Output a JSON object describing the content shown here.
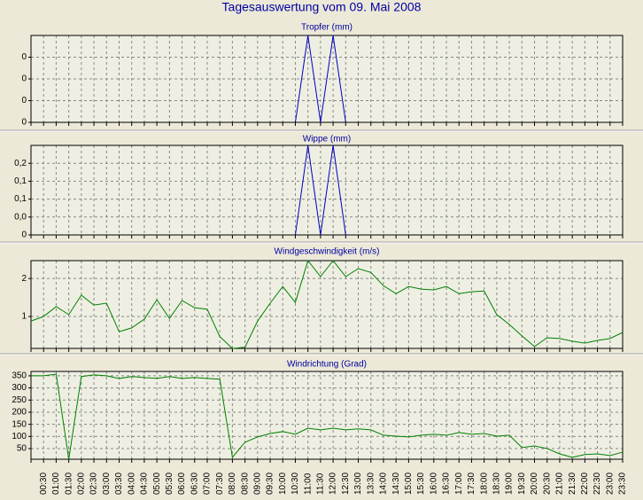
{
  "title": "Tagesauswertung vom 09. Mai 2008",
  "chart_data": [
    {
      "type": "line",
      "title": "Tropfer (mm)",
      "ylim": [
        0,
        0.4
      ],
      "yticks": [
        0,
        {
          "value": 0.1,
          "label": "0"
        },
        {
          "value": 0.2,
          "label": "0"
        },
        {
          "value": 0.3,
          "label": "0"
        }
      ],
      "series": [
        {
          "color": "#0000c0",
          "values": [
            null,
            null,
            null,
            null,
            null,
            null,
            null,
            null,
            null,
            null,
            null,
            null,
            null,
            null,
            null,
            null,
            null,
            null,
            null,
            null,
            null,
            0,
            0.4,
            0,
            0.4,
            0,
            null,
            null,
            null,
            null,
            null,
            null,
            null,
            null,
            null,
            null,
            null,
            null,
            null,
            null,
            null,
            null,
            null,
            null,
            null,
            null,
            null,
            null
          ]
        }
      ]
    },
    {
      "type": "line",
      "title": "Wippe (mm)",
      "ylim": [
        0,
        0.25
      ],
      "yticks": [
        0,
        {
          "value": 0.05,
          "label": "0,0"
        },
        {
          "value": 0.1,
          "label": "0,1"
        },
        {
          "value": 0.15,
          "label": "0,1"
        },
        {
          "value": 0.2,
          "label": "0,2"
        }
      ],
      "series": [
        {
          "color": "#0000c0",
          "values": [
            null,
            null,
            null,
            null,
            null,
            null,
            null,
            null,
            null,
            null,
            null,
            null,
            null,
            null,
            null,
            null,
            null,
            null,
            null,
            null,
            null,
            0,
            0.25,
            0,
            0.25,
            0,
            null,
            null,
            null,
            null,
            null,
            null,
            null,
            null,
            null,
            null,
            null,
            null,
            null,
            null,
            null,
            null,
            null,
            null,
            null,
            null,
            null,
            null
          ]
        }
      ]
    },
    {
      "type": "line",
      "title": "Windgeschwindigkeit (m/s)",
      "ylim": [
        0.16,
        2.47
      ],
      "yticks": [
        1,
        2
      ],
      "series": [
        {
          "color": "#008000",
          "values": [
            0.88,
            1.0,
            1.26,
            1.05,
            1.56,
            1.3,
            1.35,
            0.6,
            0.7,
            0.93,
            1.44,
            0.95,
            1.42,
            1.23,
            1.19,
            0.47,
            0.16,
            0.19,
            0.88,
            1.35,
            1.79,
            1.37,
            2.47,
            2.05,
            2.47,
            2.05,
            2.26,
            2.16,
            1.81,
            1.6,
            1.79,
            1.72,
            1.7,
            1.79,
            1.6,
            1.65,
            1.67,
            1.05,
            0.79,
            0.49,
            0.21,
            0.44,
            0.42,
            0.35,
            0.3,
            0.37,
            0.42,
            0.58
          ]
        }
      ]
    },
    {
      "type": "line",
      "title": "Windrichtung (Grad)",
      "ylim": [
        6,
        368
      ],
      "yticks": [
        50,
        100,
        150,
        200,
        250,
        300,
        350
      ],
      "categories": [
        null,
        "00:30",
        "01:00",
        "01:30",
        "02:00",
        "02:30",
        "03:00",
        "03:30",
        "04:00",
        "04:30",
        "05:00",
        "05:30",
        "06:00",
        "06:30",
        "07:00",
        "07:30",
        "08:00",
        "08:30",
        "09:00",
        "09:30",
        "10:00",
        "10:30",
        "11:00",
        "11:30",
        "12:00",
        "12:30",
        "13:00",
        "13:30",
        "14:00",
        "14:30",
        "15:00",
        "15:30",
        "16:00",
        "16:30",
        "17:00",
        "17:30",
        "18:00",
        "18:30",
        "19:00",
        "19:30",
        "20:00",
        "20:30",
        "21:00",
        "21:30",
        "22:00",
        "22:30",
        "23:00",
        "23:30"
      ],
      "series": [
        {
          "color": "#008000",
          "values": [
            350,
            350,
            357,
            6,
            347,
            354,
            350,
            339,
            347,
            343,
            339,
            347,
            339,
            343,
            339,
            336,
            14,
            76,
            98,
            112,
            120,
            109,
            134,
            127,
            134,
            127,
            131,
            127,
            105,
            101,
            98,
            105,
            109,
            105,
            116,
            109,
            112,
            101,
            105,
            54,
            61,
            50,
            28,
            14,
            25,
            28,
            21,
            35
          ]
        }
      ]
    }
  ]
}
